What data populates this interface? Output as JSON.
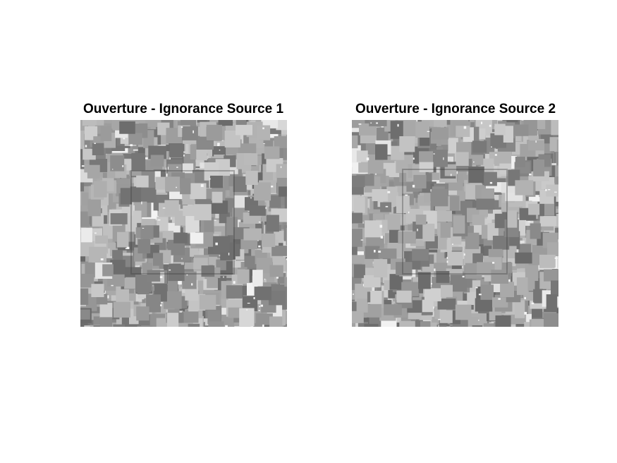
{
  "figure": {
    "panels": [
      {
        "title": "Ouverture - Ignorance Source 1"
      },
      {
        "title": "Ouverture - Ignorance Source 2"
      }
    ]
  },
  "colors": {
    "background": "#ffffff",
    "image_base": "#a8a8a8",
    "colormap": "gray"
  }
}
